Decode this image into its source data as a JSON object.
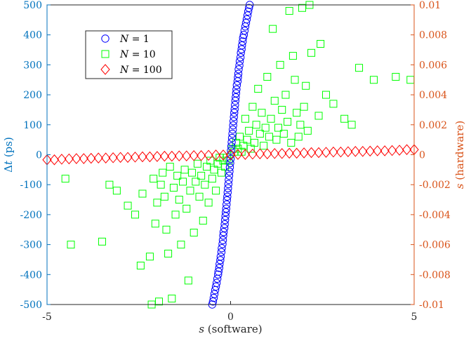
{
  "chart_data": {
    "type": "scatter",
    "title": "",
    "xlabel": {
      "italic": "s",
      "rest": " (software)"
    },
    "ylabel_left": {
      "prefix": "Δ",
      "italic": "t",
      "rest": " (ps)"
    },
    "ylabel_right": {
      "italic": "s",
      "rest": " (hardware)"
    },
    "xlim": [
      -5,
      5
    ],
    "ylim_left": [
      -500,
      500
    ],
    "ylim_right": [
      -0.01,
      0.01
    ],
    "x_ticks": [
      -5,
      0,
      5
    ],
    "x_tick_labels": [
      "-5",
      "0",
      "5"
    ],
    "y_left_ticks": [
      -500,
      -400,
      -300,
      -200,
      -100,
      0,
      100,
      200,
      300,
      400,
      500
    ],
    "y_left_tick_labels": [
      "-500",
      "-400",
      "-300",
      "-200",
      "-100",
      "0",
      "100",
      "200",
      "300",
      "400",
      "500"
    ],
    "y_right_ticks": [
      -0.01,
      -0.008,
      -0.006,
      -0.004,
      -0.002,
      0,
      0.002,
      0.004,
      0.006,
      0.008,
      0.01
    ],
    "y_right_tick_labels": [
      "-0.01",
      "-0.008",
      "-0.006",
      "-0.004",
      "-0.002",
      "0",
      "0.002",
      "0.004",
      "0.006",
      "0.008",
      "0.01"
    ],
    "grid": false,
    "legend_position": "top-left",
    "colors": {
      "left_axis": "#0072BD",
      "right_axis": "#D95319",
      "axis": "#000000"
    },
    "series": [
      {
        "name": "N = 1",
        "legend_label": {
          "italic": "N",
          "rest": " = 1"
        },
        "marker": "circle",
        "color": "#0000ff",
        "points": [
          [
            -0.5,
            -500
          ],
          [
            -0.48,
            -490
          ],
          [
            -0.46,
            -478
          ],
          [
            -0.44,
            -465
          ],
          [
            -0.42,
            -452
          ],
          [
            -0.4,
            -440
          ],
          [
            -0.38,
            -428
          ],
          [
            -0.36,
            -414
          ],
          [
            -0.34,
            -400
          ],
          [
            -0.33,
            -390
          ],
          [
            -0.31,
            -378
          ],
          [
            -0.3,
            -365
          ],
          [
            -0.28,
            -352
          ],
          [
            -0.27,
            -340
          ],
          [
            -0.25,
            -325
          ],
          [
            -0.24,
            -312
          ],
          [
            -0.22,
            -298
          ],
          [
            -0.21,
            -285
          ],
          [
            -0.2,
            -270
          ],
          [
            -0.19,
            -258
          ],
          [
            -0.17,
            -245
          ],
          [
            -0.16,
            -232
          ],
          [
            -0.15,
            -218
          ],
          [
            -0.14,
            -205
          ],
          [
            -0.13,
            -192
          ],
          [
            -0.12,
            -180
          ],
          [
            -0.11,
            -166
          ],
          [
            -0.1,
            -152
          ],
          [
            -0.09,
            -140
          ],
          [
            -0.08,
            -126
          ],
          [
            -0.07,
            -112
          ],
          [
            -0.06,
            -98
          ],
          [
            -0.05,
            -84
          ],
          [
            -0.04,
            -70
          ],
          [
            -0.03,
            -56
          ],
          [
            -0.02,
            -42
          ],
          [
            -0.01,
            -28
          ],
          [
            0.0,
            -14
          ],
          [
            0.0,
            0
          ],
          [
            0.01,
            14
          ],
          [
            0.02,
            28
          ],
          [
            0.03,
            42
          ],
          [
            0.04,
            56
          ],
          [
            0.05,
            70
          ],
          [
            0.06,
            84
          ],
          [
            0.07,
            98
          ],
          [
            0.08,
            112
          ],
          [
            0.09,
            126
          ],
          [
            0.1,
            140
          ],
          [
            0.11,
            152
          ],
          [
            0.12,
            166
          ],
          [
            0.13,
            180
          ],
          [
            0.14,
            192
          ],
          [
            0.15,
            205
          ],
          [
            0.16,
            218
          ],
          [
            0.17,
            232
          ],
          [
            0.19,
            245
          ],
          [
            0.2,
            258
          ],
          [
            0.21,
            270
          ],
          [
            0.22,
            285
          ],
          [
            0.24,
            298
          ],
          [
            0.25,
            312
          ],
          [
            0.27,
            325
          ],
          [
            0.28,
            340
          ],
          [
            0.3,
            352
          ],
          [
            0.31,
            365
          ],
          [
            0.33,
            378
          ],
          [
            0.34,
            390
          ],
          [
            0.36,
            400
          ],
          [
            0.38,
            414
          ],
          [
            0.4,
            428
          ],
          [
            0.42,
            440
          ],
          [
            0.44,
            452
          ],
          [
            0.46,
            465
          ],
          [
            0.48,
            478
          ],
          [
            0.5,
            490
          ],
          [
            0.52,
            500
          ]
        ]
      },
      {
        "name": "N = 10",
        "legend_label": {
          "italic": "N",
          "rest": " = 10"
        },
        "marker": "square",
        "color": "#00ff00",
        "points": [
          [
            -4.5,
            -80
          ],
          [
            -4.35,
            -300
          ],
          [
            -3.5,
            -290
          ],
          [
            -3.3,
            -100
          ],
          [
            -3.1,
            -120
          ],
          [
            -2.8,
            -170
          ],
          [
            -2.6,
            -200
          ],
          [
            -2.45,
            -370
          ],
          [
            -2.4,
            -130
          ],
          [
            -2.2,
            -340
          ],
          [
            -2.15,
            -500
          ],
          [
            -2.1,
            -80
          ],
          [
            -2.05,
            -230
          ],
          [
            -2.0,
            -160
          ],
          [
            -1.95,
            -490
          ],
          [
            -1.9,
            -100
          ],
          [
            -1.85,
            -60
          ],
          [
            -1.8,
            -140
          ],
          [
            -1.75,
            -250
          ],
          [
            -1.7,
            -330
          ],
          [
            -1.65,
            -40
          ],
          [
            -1.6,
            -480
          ],
          [
            -1.55,
            -110
          ],
          [
            -1.5,
            -200
          ],
          [
            -1.45,
            -70
          ],
          [
            -1.4,
            -150
          ],
          [
            -1.35,
            -300
          ],
          [
            -1.3,
            -90
          ],
          [
            -1.25,
            -50
          ],
          [
            -1.2,
            -180
          ],
          [
            -1.15,
            -420
          ],
          [
            -1.1,
            -120
          ],
          [
            -1.05,
            -60
          ],
          [
            -1.0,
            -260
          ],
          [
            -0.95,
            -90
          ],
          [
            -0.9,
            -30
          ],
          [
            -0.85,
            -140
          ],
          [
            -0.8,
            -70
          ],
          [
            -0.75,
            -220
          ],
          [
            -0.7,
            -100
          ],
          [
            -0.65,
            -40
          ],
          [
            -0.6,
            -160
          ],
          [
            -0.55,
            -20
          ],
          [
            -0.5,
            -80
          ],
          [
            -0.45,
            -50
          ],
          [
            -0.4,
            -120
          ],
          [
            -0.35,
            -30
          ],
          [
            -0.3,
            -10
          ],
          [
            -0.25,
            -60
          ],
          [
            -0.2,
            -20
          ],
          [
            -0.15,
            -40
          ],
          [
            -0.1,
            -10
          ],
          [
            -0.05,
            -20
          ],
          [
            0.05,
            20
          ],
          [
            0.1,
            10
          ],
          [
            0.15,
            40
          ],
          [
            0.2,
            20
          ],
          [
            0.25,
            60
          ],
          [
            0.3,
            10
          ],
          [
            0.35,
            30
          ],
          [
            0.4,
            120
          ],
          [
            0.45,
            50
          ],
          [
            0.5,
            80
          ],
          [
            0.55,
            20
          ],
          [
            0.6,
            160
          ],
          [
            0.65,
            40
          ],
          [
            0.7,
            100
          ],
          [
            0.75,
            220
          ],
          [
            0.8,
            70
          ],
          [
            0.85,
            140
          ],
          [
            0.9,
            30
          ],
          [
            0.95,
            90
          ],
          [
            1.0,
            260
          ],
          [
            1.05,
            60
          ],
          [
            1.1,
            120
          ],
          [
            1.15,
            420
          ],
          [
            1.2,
            180
          ],
          [
            1.25,
            50
          ],
          [
            1.3,
            90
          ],
          [
            1.35,
            300
          ],
          [
            1.4,
            150
          ],
          [
            1.45,
            70
          ],
          [
            1.5,
            200
          ],
          [
            1.55,
            110
          ],
          [
            1.6,
            480
          ],
          [
            1.65,
            40
          ],
          [
            1.7,
            330
          ],
          [
            1.75,
            250
          ],
          [
            1.8,
            140
          ],
          [
            1.85,
            60
          ],
          [
            1.9,
            100
          ],
          [
            1.95,
            490
          ],
          [
            2.0,
            160
          ],
          [
            2.05,
            230
          ],
          [
            2.1,
            80
          ],
          [
            2.15,
            500
          ],
          [
            2.2,
            340
          ],
          [
            2.4,
            130
          ],
          [
            2.45,
            370
          ],
          [
            2.6,
            200
          ],
          [
            2.8,
            170
          ],
          [
            3.1,
            120
          ],
          [
            3.3,
            100
          ],
          [
            3.5,
            290
          ],
          [
            3.9,
            250
          ],
          [
            4.5,
            260
          ],
          [
            4.9,
            250
          ]
        ]
      },
      {
        "name": "N = 100",
        "legend_label": {
          "italic": "N",
          "rest": " = 100"
        },
        "marker": "diamond",
        "color": "#ff0000",
        "points": [
          [
            -5.0,
            -17
          ],
          [
            -4.8,
            -17
          ],
          [
            -4.6,
            -15
          ],
          [
            -4.4,
            -14
          ],
          [
            -4.2,
            -13
          ],
          [
            -4.0,
            -13
          ],
          [
            -3.8,
            -12
          ],
          [
            -3.6,
            -11
          ],
          [
            -3.4,
            -11
          ],
          [
            -3.2,
            -10
          ],
          [
            -3.0,
            -9
          ],
          [
            -2.8,
            -9
          ],
          [
            -2.6,
            -8
          ],
          [
            -2.4,
            -7
          ],
          [
            -2.2,
            -7
          ],
          [
            -2.0,
            -6
          ],
          [
            -1.8,
            -5
          ],
          [
            -1.6,
            -5
          ],
          [
            -1.4,
            -4
          ],
          [
            -1.2,
            -4
          ],
          [
            -1.0,
            -3
          ],
          [
            -0.8,
            -3
          ],
          [
            -0.6,
            -2
          ],
          [
            -0.4,
            -1
          ],
          [
            -0.2,
            -1
          ],
          [
            0.0,
            0
          ],
          [
            0.2,
            1
          ],
          [
            0.4,
            1
          ],
          [
            0.6,
            2
          ],
          [
            0.8,
            3
          ],
          [
            1.0,
            3
          ],
          [
            1.2,
            4
          ],
          [
            1.4,
            4
          ],
          [
            1.6,
            5
          ],
          [
            1.8,
            5
          ],
          [
            2.0,
            6
          ],
          [
            2.2,
            7
          ],
          [
            2.4,
            7
          ],
          [
            2.6,
            8
          ],
          [
            2.8,
            9
          ],
          [
            3.0,
            9
          ],
          [
            3.2,
            10
          ],
          [
            3.4,
            11
          ],
          [
            3.6,
            11
          ],
          [
            3.8,
            12
          ],
          [
            4.0,
            13
          ],
          [
            4.2,
            13
          ],
          [
            4.4,
            14
          ],
          [
            4.6,
            15
          ],
          [
            4.8,
            17
          ],
          [
            5.0,
            17
          ]
        ]
      }
    ]
  }
}
